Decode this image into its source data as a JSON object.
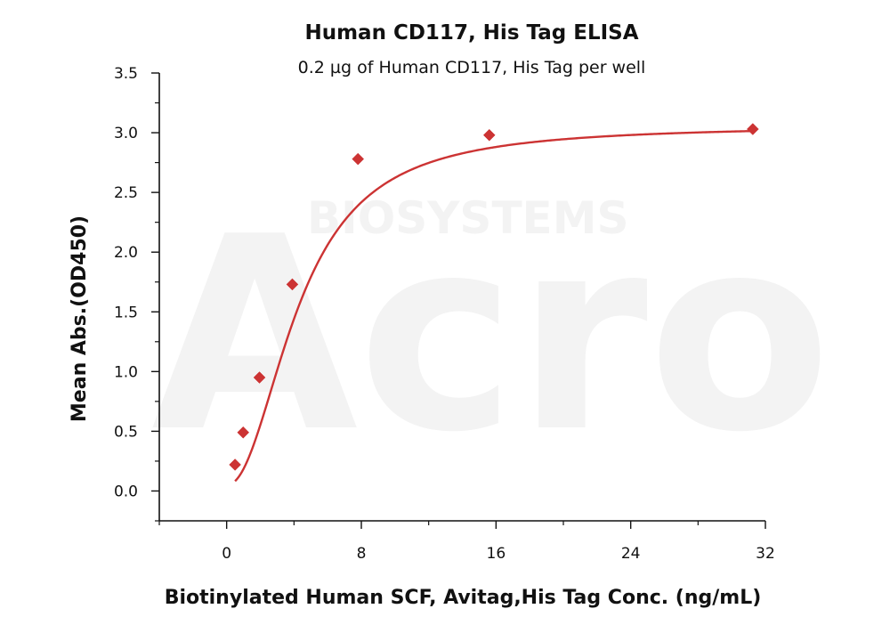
{
  "watermark": {
    "brand": "Acro",
    "sub": "BIOSYSTEMS",
    "color": "#f3f3f3"
  },
  "chart_data": {
    "type": "scatter",
    "title": "Human CD117, His Tag ELISA",
    "subtitle": "0.2 µg of Human CD117, His Tag per well",
    "xlabel": "Biotinylated Human SCF, Avitag,His Tag Conc. (ng/mL)",
    "ylabel": "Mean Abs.(OD450)",
    "xlim": [
      -4,
      32
    ],
    "ylim": [
      -0.25,
      3.5
    ],
    "xticks": [
      0,
      8,
      16,
      24,
      32
    ],
    "yticks": [
      0.0,
      0.5,
      1.0,
      1.5,
      2.0,
      2.5,
      3.0,
      3.5
    ],
    "xticks_display": [
      "0",
      "8",
      "16",
      "24",
      "32"
    ],
    "yticks_display": [
      "0.0",
      "0.5",
      "1.0",
      "1.5",
      "2.0",
      "2.5",
      "3.0",
      "3.5"
    ],
    "color": "#cc3333",
    "marker": "diamond",
    "grid": false,
    "series": [
      {
        "points": [
          {
            "x": 0.5,
            "y": 0.22
          },
          {
            "x": 0.98,
            "y": 0.49
          },
          {
            "x": 1.95,
            "y": 0.95
          },
          {
            "x": 3.9,
            "y": 1.73
          },
          {
            "x": 7.8,
            "y": 2.78
          },
          {
            "x": 15.6,
            "y": 2.98
          },
          {
            "x": 31.25,
            "y": 3.03
          }
        ],
        "fit_curve": true
      }
    ]
  }
}
